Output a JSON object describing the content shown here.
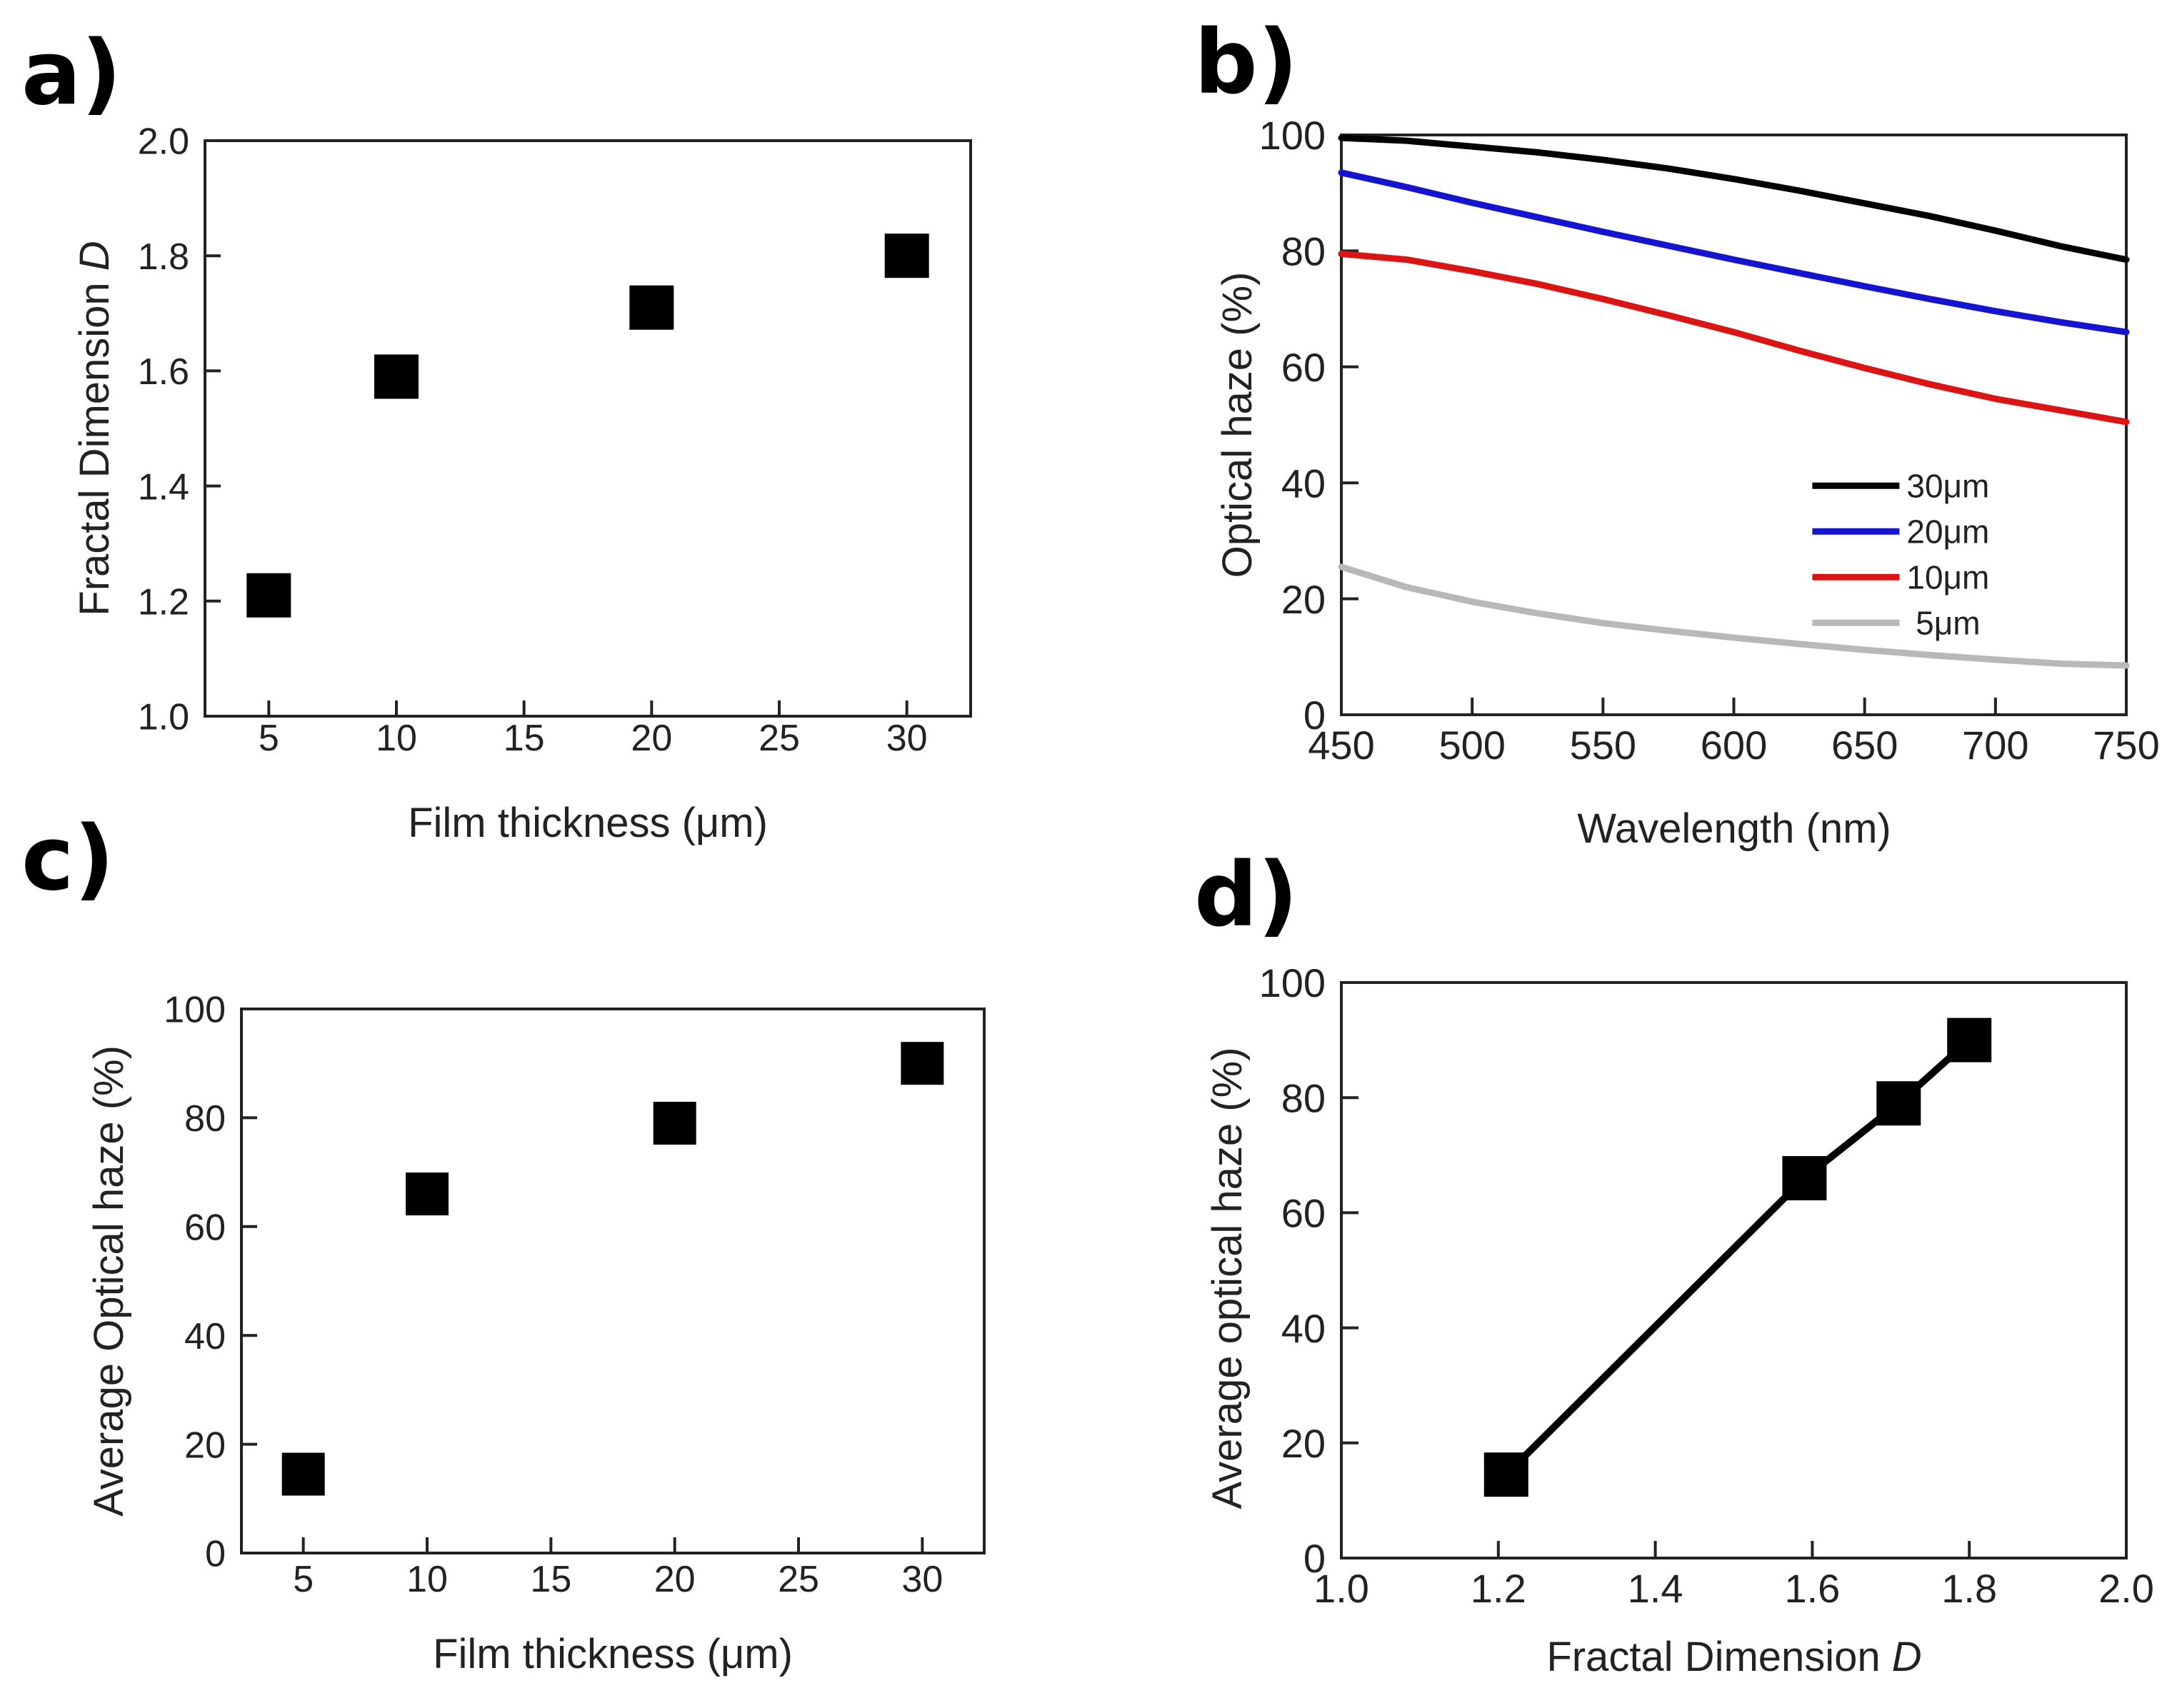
{
  "colors": {
    "axis": "#222222",
    "marker": "#000000",
    "series_30": "#000000",
    "series_20": "#1414d2",
    "series_10": "#dd1414",
    "series_5": "#b8b8b8"
  },
  "chart_data": [
    {
      "panel": "a)",
      "type": "scatter",
      "title": "",
      "xlabel": "Film thickness (μm)",
      "ylabel_main": "Fractal Dimension ",
      "ylabel_var": "D",
      "xlim": [
        2.5,
        32.5
      ],
      "ylim": [
        1.0,
        2.0
      ],
      "xticks": [
        5,
        10,
        15,
        20,
        25,
        30
      ],
      "xtick_labels": [
        "5",
        "10",
        "15",
        "20",
        "25",
        "30"
      ],
      "yticks": [
        1.0,
        1.2,
        1.4,
        1.6,
        1.8,
        2.0
      ],
      "ytick_labels": [
        "1.0",
        "1.2",
        "1.4",
        "1.6",
        "1.8",
        "2.0"
      ],
      "x": [
        5,
        10,
        20,
        30
      ],
      "y": [
        1.21,
        1.59,
        1.71,
        1.8
      ]
    },
    {
      "panel": "b)",
      "type": "line",
      "title": "",
      "xlabel": "Wavelength (nm)",
      "ylabel": "Optical haze (%)",
      "xlim": [
        450,
        750
      ],
      "ylim": [
        0,
        100
      ],
      "xticks": [
        450,
        500,
        550,
        600,
        650,
        700,
        750
      ],
      "xtick_labels": [
        "450",
        "500",
        "550",
        "600",
        "650",
        "700",
        "750"
      ],
      "yticks": [
        0,
        20,
        40,
        60,
        80,
        100
      ],
      "ytick_labels": [
        "0",
        "20",
        "40",
        "60",
        "80",
        "100"
      ],
      "legend_position": "lower-right",
      "x": [
        450,
        475,
        500,
        525,
        550,
        575,
        600,
        625,
        650,
        675,
        700,
        725,
        750
      ],
      "series": [
        {
          "name": "30μm",
          "color_key": "series_30",
          "values": [
            99.5,
            99.0,
            98.0,
            97.0,
            95.7,
            94.2,
            92.4,
            90.4,
            88.2,
            86.0,
            83.5,
            80.8,
            78.5
          ]
        },
        {
          "name": "20μm",
          "color_key": "series_20",
          "values": [
            93.5,
            91.0,
            88.3,
            85.8,
            83.3,
            80.9,
            78.5,
            76.2,
            73.9,
            71.7,
            69.6,
            67.7,
            66.0
          ]
        },
        {
          "name": "10μm",
          "color_key": "series_10",
          "values": [
            79.5,
            78.5,
            76.5,
            74.3,
            71.7,
            68.9,
            66.0,
            62.8,
            59.8,
            57.0,
            54.5,
            52.5,
            50.5
          ]
        },
        {
          "name": " 5μm",
          "color_key": "series_5",
          "values": [
            25.5,
            22.0,
            19.5,
            17.5,
            15.8,
            14.5,
            13.3,
            12.2,
            11.2,
            10.3,
            9.5,
            8.8,
            8.5
          ]
        }
      ]
    },
    {
      "panel": "c)",
      "type": "scatter",
      "title": "",
      "xlabel": "Film thickness (μm)",
      "ylabel": "Average Optical haze (%)",
      "xlim": [
        2.5,
        32.5
      ],
      "ylim": [
        0,
        100
      ],
      "xticks": [
        5,
        10,
        15,
        20,
        25,
        30
      ],
      "xtick_labels": [
        "5",
        "10",
        "15",
        "20",
        "25",
        "30"
      ],
      "yticks": [
        0,
        20,
        40,
        60,
        80,
        100
      ],
      "ytick_labels": [
        "0",
        "20",
        "40",
        "60",
        "80",
        "100"
      ],
      "x": [
        5,
        10,
        20,
        30
      ],
      "y": [
        14.5,
        66.0,
        79.0,
        90.0
      ]
    },
    {
      "panel": "d)",
      "type": "line",
      "title": "",
      "xlabel_main": "Fractal Dimension ",
      "xlabel_var": "D",
      "ylabel": "Average optical haze (%)",
      "xlim": [
        1.0,
        2.0
      ],
      "ylim": [
        0,
        100
      ],
      "xticks": [
        1.0,
        1.2,
        1.4,
        1.6,
        1.8,
        2.0
      ],
      "xtick_labels": [
        "1.0",
        "1.2",
        "1.4",
        "1.6",
        "1.8",
        "2.0"
      ],
      "yticks": [
        0,
        20,
        40,
        60,
        80,
        100
      ],
      "ytick_labels": [
        "0",
        "20",
        "40",
        "60",
        "80",
        "100"
      ],
      "x": [
        1.21,
        1.59,
        1.71,
        1.8
      ],
      "y": [
        14.5,
        66.0,
        79.0,
        90.0
      ]
    }
  ]
}
